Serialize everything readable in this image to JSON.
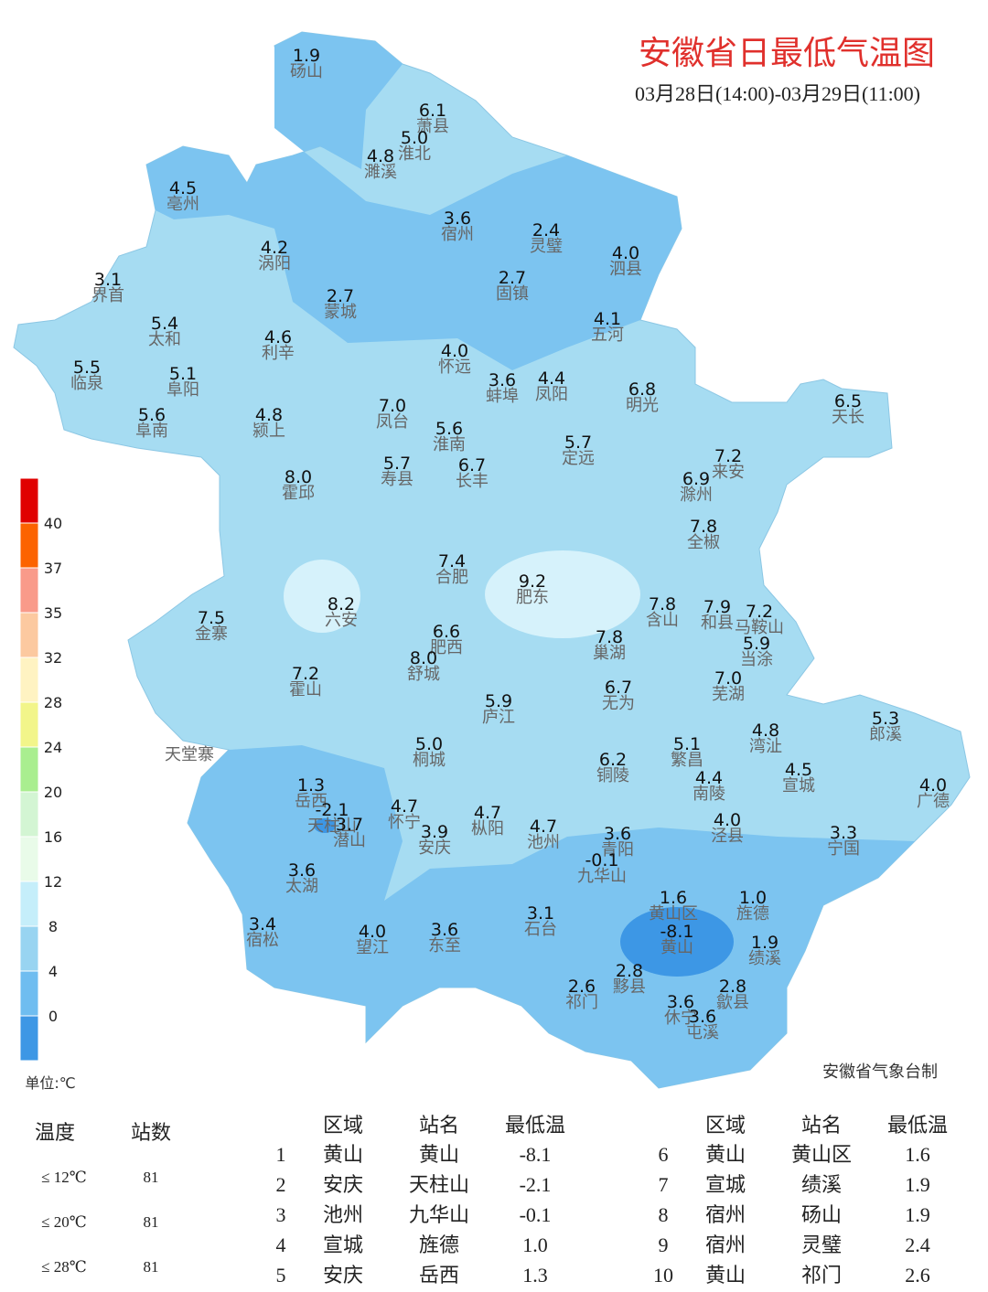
{
  "title": "安徽省日最低气温图",
  "subtitle": "03月28日(14:00)-03月29日(11:00)",
  "credit": "安徽省气象台制",
  "legend": {
    "unit": "单位:℃",
    "labels": [
      "40",
      "37",
      "35",
      "32",
      "28",
      "24",
      "20",
      "16",
      "12",
      "8",
      "4",
      "0"
    ],
    "colors": [
      "#e00000",
      "#fc6300",
      "#f99a8a",
      "#fcc9a0",
      "#fff3c2",
      "#f2f58a",
      "#a9ee8f",
      "#d3f5d3",
      "#e9fbe9",
      "#c5eefa",
      "#98d4f1",
      "#6fbdf0",
      "#3d97e5"
    ]
  },
  "stations": [
    {
      "value": "1.9",
      "name": "砀山"
    },
    {
      "value": "6.1",
      "name": "萧县"
    },
    {
      "value": "5.0",
      "name": "淮北"
    },
    {
      "value": "4.8",
      "name": "濉溪"
    },
    {
      "value": "4.5",
      "name": "亳州"
    },
    {
      "value": "3.6",
      "name": "宿州"
    },
    {
      "value": "2.4",
      "name": "灵璧"
    },
    {
      "value": "4.0",
      "name": "泗县"
    },
    {
      "value": "4.2",
      "name": "涡阳"
    },
    {
      "value": "3.1",
      "name": "界首"
    },
    {
      "value": "2.7",
      "name": "固镇"
    },
    {
      "value": "2.7",
      "name": "蒙城"
    },
    {
      "value": "5.4",
      "name": "太和"
    },
    {
      "value": "4.1",
      "name": "五河"
    },
    {
      "value": "4.6",
      "name": "利辛"
    },
    {
      "value": "4.0",
      "name": "怀远"
    },
    {
      "value": "5.5",
      "name": "临泉"
    },
    {
      "value": "5.1",
      "name": "阜阳"
    },
    {
      "value": "3.6",
      "name": "蚌埠"
    },
    {
      "value": "4.4",
      "name": "凤阳"
    },
    {
      "value": "6.8",
      "name": "明光"
    },
    {
      "value": "6.5",
      "name": "天长"
    },
    {
      "value": "7.0",
      "name": "凤台"
    },
    {
      "value": "5.6",
      "name": "阜南"
    },
    {
      "value": "4.8",
      "name": "颍上"
    },
    {
      "value": "5.6",
      "name": "淮南"
    },
    {
      "value": "5.7",
      "name": "定远"
    },
    {
      "value": "7.2",
      "name": "来安"
    },
    {
      "value": "5.7",
      "name": "寿县"
    },
    {
      "value": "6.7",
      "name": "长丰"
    },
    {
      "value": "8.0",
      "name": "霍邱"
    },
    {
      "value": "6.9",
      "name": "滁州"
    },
    {
      "value": "7.8",
      "name": "全椒"
    },
    {
      "value": "7.4",
      "name": "合肥"
    },
    {
      "value": "9.2",
      "name": "肥东"
    },
    {
      "value": "8.2",
      "name": "六安"
    },
    {
      "value": "7.8",
      "name": "含山"
    },
    {
      "value": "7.9",
      "name": "和县"
    },
    {
      "value": "7.2",
      "name": "马鞍山"
    },
    {
      "value": "7.5",
      "name": "金寨"
    },
    {
      "value": "6.6",
      "name": "肥西"
    },
    {
      "value": "7.8",
      "name": "巢湖"
    },
    {
      "value": "5.9",
      "name": "当涂"
    },
    {
      "value": "8.0",
      "name": "舒城"
    },
    {
      "value": "7.2",
      "name": "霍山"
    },
    {
      "value": "6.7",
      "name": "无为"
    },
    {
      "value": "7.0",
      "name": "芜湖"
    },
    {
      "value": "5.9",
      "name": "庐江"
    },
    {
      "value": "5.3",
      "name": "郎溪"
    },
    {
      "value": "5.0",
      "name": "桐城"
    },
    {
      "value": "5.1",
      "name": "繁昌"
    },
    {
      "value": "4.8",
      "name": "湾沚"
    },
    {
      "value": "6.2",
      "name": "铜陵"
    },
    {
      "value": "4.4",
      "name": "南陵"
    },
    {
      "value": "4.5",
      "name": "宣城"
    },
    {
      "value": "1.3",
      "name": "岳西"
    },
    {
      "value": "4.0",
      "name": "广德"
    },
    {
      "value": "-2.1",
      "name": "天柱山"
    },
    {
      "value": "3.7",
      "name": "潜山"
    },
    {
      "value": "4.7",
      "name": "怀宁"
    },
    {
      "value": "4.7",
      "name": "枞阳"
    },
    {
      "value": "3.9",
      "name": "安庆"
    },
    {
      "value": "4.7",
      "name": "池州"
    },
    {
      "value": "3.6",
      "name": "青阳"
    },
    {
      "value": "4.0",
      "name": "泾县"
    },
    {
      "value": "3.3",
      "name": "宁国"
    },
    {
      "value": "-0.1",
      "name": "九华山"
    },
    {
      "value": "3.6",
      "name": "太湖"
    },
    {
      "value": "1.6",
      "name": "黄山区"
    },
    {
      "value": "1.0",
      "name": "旌德"
    },
    {
      "value": "3.1",
      "name": "石台"
    },
    {
      "value": "3.4",
      "name": "宿松"
    },
    {
      "value": "4.0",
      "name": "望江"
    },
    {
      "value": "3.6",
      "name": "东至"
    },
    {
      "value": "-8.1",
      "name": "黄山"
    },
    {
      "value": "1.9",
      "name": "绩溪"
    },
    {
      "value": "2.6",
      "name": "祁门"
    },
    {
      "value": "2.8",
      "name": "黟县"
    },
    {
      "value": "2.8",
      "name": "歙县"
    },
    {
      "value": "3.6",
      "name": "休宁"
    },
    {
      "value": "3.6",
      "name": "屯溪"
    }
  ],
  "place": "天堂寨",
  "stats": {
    "header": [
      "温度",
      "站数"
    ],
    "rows": [
      [
        "≤ 12℃",
        "81"
      ],
      [
        "≤ 20℃",
        "81"
      ],
      [
        "≤ 28℃",
        "81"
      ]
    ]
  },
  "table": {
    "header": [
      "区域",
      "站名",
      "最低温"
    ],
    "rows": [
      [
        "1",
        "黄山",
        "黄山",
        "-8.1"
      ],
      [
        "2",
        "安庆",
        "天柱山",
        "-2.1"
      ],
      [
        "3",
        "池州",
        "九华山",
        "-0.1"
      ],
      [
        "4",
        "宣城",
        "旌德",
        "1.0"
      ],
      [
        "5",
        "安庆",
        "岳西",
        "1.3"
      ],
      [
        "6",
        "黄山",
        "黄山区",
        "1.6"
      ],
      [
        "7",
        "宣城",
        "绩溪",
        "1.9"
      ],
      [
        "8",
        "宿州",
        "砀山",
        "1.9"
      ],
      [
        "9",
        "宿州",
        "灵璧",
        "2.4"
      ],
      [
        "10",
        "黄山",
        "祁门",
        "2.6"
      ]
    ]
  }
}
